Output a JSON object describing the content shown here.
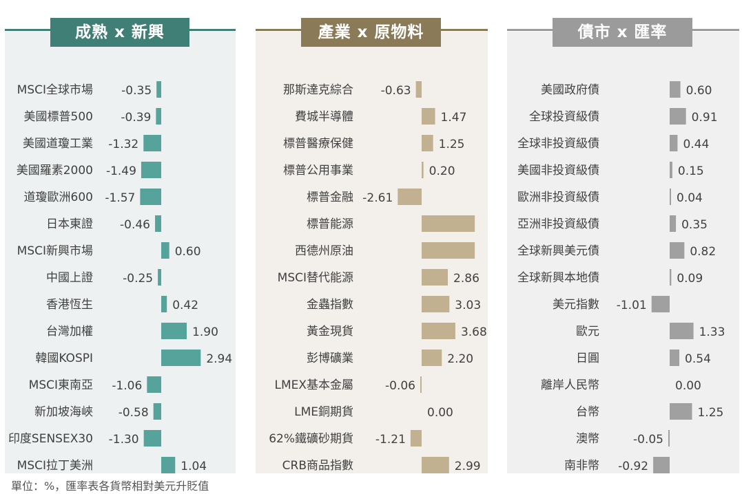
{
  "colors": {
    "developed_emerging": "#55a39b",
    "developed_emerging_header": "#3f7f76",
    "developed_emerging_bg": "#edf1f1",
    "sector_commodity": "#c2b190",
    "sector_commodity_header": "#8a7a57",
    "sector_commodity_bg": "#f3f0eb",
    "bond_fx": "#a0a0a0",
    "bond_fx_header": "#9b9b9b",
    "bond_fx_bg": "#f0f0f0"
  },
  "footnote": "單位：%，匯率表各貨幣相對美元升貶值",
  "chart_data": [
    {
      "type": "bar",
      "orientation": "horizontal",
      "title": "成熟 x 新興",
      "categories": [
        "MSCI全球市場",
        "美國標普500",
        "美國道瓊工業",
        "美國羅素2000",
        "道瓊歐洲600",
        "日本東證",
        "MSCI新興市場",
        "中國上證",
        "香港恆生",
        "台灣加權",
        "韓國KOSPI",
        "MSCI東南亞",
        "新加坡海峽",
        "印度SENSEX30",
        "MSCI拉丁美洲"
      ],
      "values": [
        -0.35,
        -0.39,
        -1.32,
        -1.49,
        -1.57,
        -0.46,
        0.6,
        -0.25,
        0.42,
        1.9,
        2.94,
        -1.06,
        -0.58,
        -1.3,
        1.04
      ],
      "labels": [
        "-0.35",
        "-0.39",
        "-1.32",
        "-1.49",
        "-1.57",
        "-0.46",
        "0.60",
        "-0.25",
        "0.42",
        "1.90",
        "2.94",
        "-1.06",
        "-0.58",
        "-1.30",
        "1.04"
      ],
      "color_key": "developed_emerging",
      "grid": false
    },
    {
      "type": "bar",
      "orientation": "horizontal",
      "title": "產業 x 原物料",
      "categories": [
        "那斯達克綜合",
        "費城半導體",
        "標普醫療保健",
        "標普公用事業",
        "標普金融",
        "標普能源",
        "西德州原油",
        "MSCI替代能源",
        "金蟲指數",
        "黃金現貨",
        "彭博礦業",
        "LMEX基本金屬",
        "LME銅期貨",
        "62%鐵礦砂期貨",
        "CRB商品指數"
      ],
      "values": [
        -0.63,
        1.47,
        1.25,
        0.2,
        -2.61,
        5.8,
        5.8,
        2.86,
        3.03,
        3.68,
        2.2,
        -0.06,
        0.0,
        -1.21,
        2.99
      ],
      "labels": [
        "-0.63",
        "1.47",
        "1.25",
        "0.20",
        "-2.61",
        "",
        "",
        "2.86",
        "3.03",
        "3.68",
        "2.20",
        "-0.06",
        "0.00",
        "-1.21",
        "2.99"
      ],
      "color_key": "sector_commodity",
      "grid": false
    },
    {
      "type": "bar",
      "orientation": "horizontal",
      "title": "債市 x 匯率",
      "categories": [
        "美國政府債",
        "全球投資級債",
        "全球非投資級債",
        "美國非投資級債",
        "歐洲非投資級債",
        "亞洲非投資級債",
        "全球新興美元債",
        "全球新興本地債",
        "美元指數",
        "歐元",
        "日圓",
        "離岸人民幣",
        "台幣",
        "澳幣",
        "南非幣"
      ],
      "values": [
        0.6,
        0.91,
        0.44,
        0.15,
        0.04,
        0.35,
        0.82,
        0.09,
        -1.01,
        1.33,
        0.54,
        0.0,
        1.25,
        -0.05,
        -0.92
      ],
      "labels": [
        "0.60",
        "0.91",
        "0.44",
        "0.15",
        "0.04",
        "0.35",
        "0.82",
        "0.09",
        "-1.01",
        "1.33",
        "0.54",
        "0.00",
        "1.25",
        "-0.05",
        "-0.92"
      ],
      "color_key": "bond_fx",
      "grid": false
    }
  ]
}
